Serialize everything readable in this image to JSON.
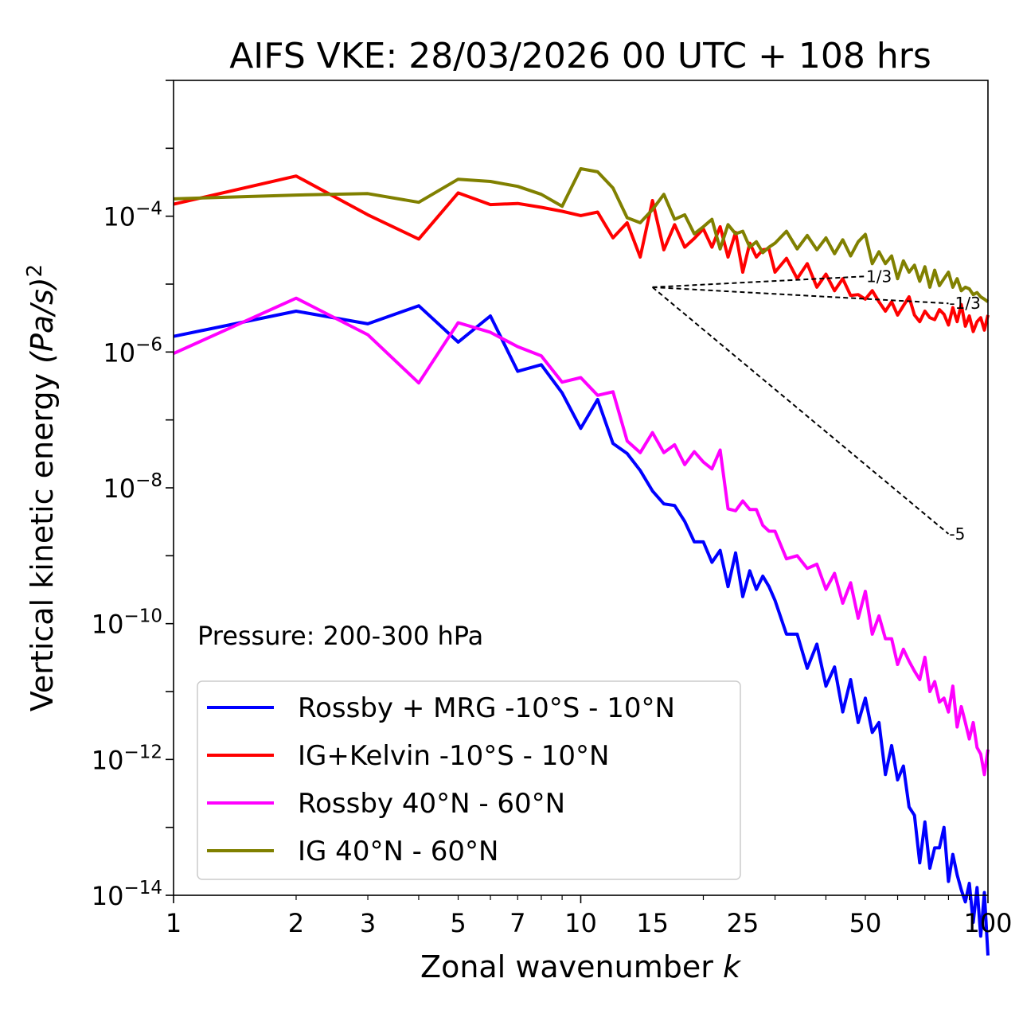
{
  "chart_data": {
    "type": "line",
    "title": "AIFS VKE: 28/03/2026 00 UTC + 108 hrs",
    "xlabel_text": "Zonal wavenumber ",
    "xlabel_var": "k",
    "ylabel_text": "Vertical kinetic energy ",
    "ylabel_unit": "(Pa/s)",
    "ylabel_exp": "2",
    "xscale": "log",
    "yscale": "log",
    "xlim": [
      1,
      100
    ],
    "ylim": [
      1e-14,
      0.01
    ],
    "xticks": [
      1,
      2,
      3,
      5,
      7,
      10,
      15,
      25,
      50,
      100
    ],
    "xtick_labels": [
      "1",
      "2",
      "3",
      "5",
      "7",
      "10",
      "15",
      "25",
      "50",
      "100"
    ],
    "yticks": [
      1e-14,
      1e-12,
      1e-10,
      1e-08,
      1e-06,
      0.0001
    ],
    "ytick_base": "10",
    "ytick_exponents": [
      "−14",
      "−12",
      "−10",
      "−8",
      "−6",
      "−4"
    ],
    "annotation": "Pressure: 200-300 hPa",
    "legend_position": "lower-left",
    "reference_slopes": [
      {
        "label": "1/3",
        "k": [
          15,
          50
        ],
        "energy": [
          9e-06,
          1.3e-05
        ]
      },
      {
        "label": "-1/3",
        "k": [
          15,
          80
        ],
        "energy": [
          9e-06,
          5.2e-06
        ]
      },
      {
        "label": "-5",
        "k": [
          15,
          80
        ],
        "energy": [
          9e-06,
          2.1e-09
        ]
      }
    ],
    "series": [
      {
        "name": "Rossby + MRG -10°S - 10°N",
        "color": "#0000ff",
        "x": [
          1,
          2,
          3,
          4,
          5,
          6,
          7,
          8,
          9,
          10,
          11,
          12,
          13,
          14,
          15,
          16,
          17,
          18,
          19,
          20,
          21,
          22,
          23,
          24,
          25,
          26,
          27,
          28,
          29,
          30,
          32,
          34,
          36,
          38,
          40,
          42,
          44,
          46,
          48,
          50,
          52,
          54,
          56,
          58,
          60,
          62,
          64,
          66,
          68,
          70,
          72,
          74,
          76,
          78,
          80,
          82,
          84,
          86,
          88,
          90,
          92,
          94,
          96,
          98,
          100
        ],
        "values": [
          1.7e-06,
          4e-06,
          2.6e-06,
          4.8e-06,
          1.4e-06,
          3.4e-06,
          5.2e-07,
          6.5e-07,
          2.5e-07,
          7.5e-08,
          2e-07,
          4.5e-08,
          3.2e-08,
          1.8e-08,
          9e-09,
          5.8e-09,
          5.5e-09,
          3.2e-09,
          1.6e-09,
          1.6e-09,
          8e-10,
          1.2e-09,
          3.5e-10,
          1.1e-09,
          2.5e-10,
          6e-10,
          3.2e-10,
          5e-10,
          3.5e-10,
          2.2e-10,
          7e-11,
          7e-11,
          2.2e-11,
          5e-11,
          1.2e-11,
          2.3e-11,
          5e-12,
          1.5e-11,
          3.5e-12,
          8e-12,
          2.5e-12,
          3.5e-12,
          6e-13,
          1.6e-12,
          5e-13,
          8e-13,
          2e-13,
          1.5e-13,
          3e-14,
          1.2e-13,
          2.5e-14,
          5e-14,
          5e-14,
          1e-13,
          1.6e-14,
          4e-14,
          2e-14,
          1.2e-14,
          8e-15,
          1.5e-14,
          4e-15,
          1.3e-14,
          2.5e-15,
          1.1e-14,
          1.3e-15
        ]
      },
      {
        "name": "IG+Kelvin -10°S - 10°N",
        "color": "#ff0000",
        "x": [
          1,
          2,
          3,
          4,
          5,
          6,
          7,
          8,
          9,
          10,
          11,
          12,
          13,
          14,
          15,
          16,
          17,
          18,
          19,
          20,
          21,
          22,
          23,
          24,
          25,
          26,
          27,
          28,
          29,
          30,
          32,
          34,
          36,
          38,
          40,
          42,
          44,
          46,
          48,
          50,
          52,
          54,
          56,
          58,
          60,
          62,
          64,
          66,
          68,
          70,
          72,
          74,
          76,
          78,
          80,
          82,
          84,
          86,
          88,
          90,
          92,
          94,
          96,
          98,
          100
        ],
        "values": [
          0.00015,
          0.00039,
          0.000105,
          4.6e-05,
          0.00022,
          0.000148,
          0.000154,
          0.000135,
          0.000118,
          0.000102,
          0.000115,
          4.8e-05,
          8e-05,
          2.5e-05,
          0.00017,
          3.2e-05,
          7.5e-05,
          3.5e-05,
          4.7e-05,
          6.5e-05,
          3.5e-05,
          7e-05,
          2.5e-05,
          5.8e-05,
          1.5e-05,
          4e-05,
          2.5e-05,
          3.2e-05,
          3.3e-05,
          1.5e-05,
          2.4e-05,
          1.2e-05,
          2e-05,
          9e-06,
          1.4e-05,
          8e-06,
          1.2e-05,
          6.8e-06,
          7e-06,
          6e-06,
          8e-06,
          5.5e-06,
          4e-06,
          5.5e-06,
          3.5e-06,
          4.8e-06,
          6.5e-06,
          3.5e-06,
          2.8e-06,
          4e-06,
          3.2e-06,
          3e-06,
          4.2e-06,
          3.6e-06,
          2.5e-06,
          4.5e-06,
          2.8e-06,
          5e-06,
          2.4e-06,
          3.4e-06,
          2e-06,
          2.8e-06,
          3.2e-06,
          2.1e-06,
          3.5e-06
        ]
      },
      {
        "name": "Rossby 40°N - 60°N",
        "color": "#ff00ff",
        "x": [
          1,
          2,
          3,
          4,
          5,
          6,
          7,
          8,
          9,
          10,
          11,
          12,
          13,
          14,
          15,
          16,
          17,
          18,
          19,
          20,
          21,
          22,
          23,
          24,
          25,
          26,
          27,
          28,
          29,
          30,
          32,
          34,
          36,
          38,
          40,
          42,
          44,
          46,
          48,
          50,
          52,
          54,
          56,
          58,
          60,
          62,
          64,
          66,
          68,
          70,
          72,
          74,
          76,
          78,
          80,
          82,
          84,
          86,
          88,
          90,
          92,
          94,
          96,
          98,
          100
        ],
        "values": [
          9.5e-07,
          6.2e-06,
          1.8e-06,
          3.5e-07,
          2.7e-06,
          1.95e-06,
          1.2e-06,
          8.8e-07,
          3.6e-07,
          4.2e-07,
          2.3e-07,
          2.6e-07,
          4.9e-08,
          3.3e-08,
          6.5e-08,
          3.3e-08,
          4.3e-08,
          2.2e-08,
          3.4e-08,
          2.4e-08,
          1.9e-08,
          3.6e-08,
          4.9e-09,
          4.6e-09,
          6.4e-09,
          4.8e-09,
          4.8e-09,
          2.8e-09,
          2.3e-09,
          2.3e-09,
          9e-10,
          1e-09,
          6.5e-10,
          7.5e-10,
          3.2e-10,
          5.5e-10,
          2e-10,
          4e-10,
          1.2e-10,
          3e-10,
          7e-11,
          1.3e-10,
          6e-11,
          6e-11,
          2.5e-11,
          4.2e-11,
          2.8e-11,
          2e-11,
          1.5e-11,
          3.2e-11,
          1e-11,
          1.4e-11,
          7e-12,
          8e-12,
          5e-12,
          1.2e-11,
          3e-12,
          6e-12,
          3.5e-12,
          2e-12,
          3.5e-12,
          1.5e-12,
          1.2e-12,
          6e-13,
          1.4e-12
        ]
      },
      {
        "name": "IG 40°N - 60°N",
        "color": "#808000",
        "x": [
          1,
          2,
          3,
          4,
          5,
          6,
          7,
          8,
          9,
          10,
          11,
          12,
          13,
          14,
          15,
          16,
          17,
          18,
          19,
          20,
          21,
          22,
          23,
          24,
          25,
          26,
          27,
          28,
          29,
          30,
          32,
          34,
          36,
          38,
          40,
          42,
          44,
          46,
          48,
          50,
          52,
          54,
          56,
          58,
          60,
          62,
          64,
          66,
          68,
          70,
          72,
          74,
          76,
          78,
          80,
          82,
          84,
          86,
          88,
          90,
          92,
          94,
          96,
          98,
          100
        ],
        "values": [
          0.00018,
          0.000205,
          0.000215,
          0.00016,
          0.00035,
          0.000325,
          0.000275,
          0.00021,
          0.00014,
          0.0005,
          0.00045,
          0.00026,
          9.5e-05,
          8e-05,
          0.000125,
          0.00021,
          9e-05,
          0.000105,
          5.5e-05,
          7e-05,
          9e-05,
          3.3e-05,
          7.5e-05,
          5.5e-05,
          6e-05,
          3.5e-05,
          4.2e-05,
          2.9e-05,
          3.5e-05,
          4e-05,
          6e-05,
          3.3e-05,
          5.2e-05,
          3.2e-05,
          4.8e-05,
          2.8e-05,
          4.5e-05,
          2.6e-05,
          4.2e-05,
          5.4e-05,
          2e-05,
          3e-05,
          2e-05,
          2.6e-05,
          1.2e-05,
          2.2e-05,
          1.5e-05,
          1.9e-05,
          1.1e-05,
          1.8e-05,
          9e-06,
          1.6e-05,
          9.5e-06,
          1.2e-05,
          1.5e-05,
          9e-06,
          1.2e-05,
          8e-06,
          9e-06,
          8.5e-06,
          7e-06,
          7.5e-06,
          6.5e-06,
          6e-06,
          5.5e-06
        ]
      }
    ]
  }
}
